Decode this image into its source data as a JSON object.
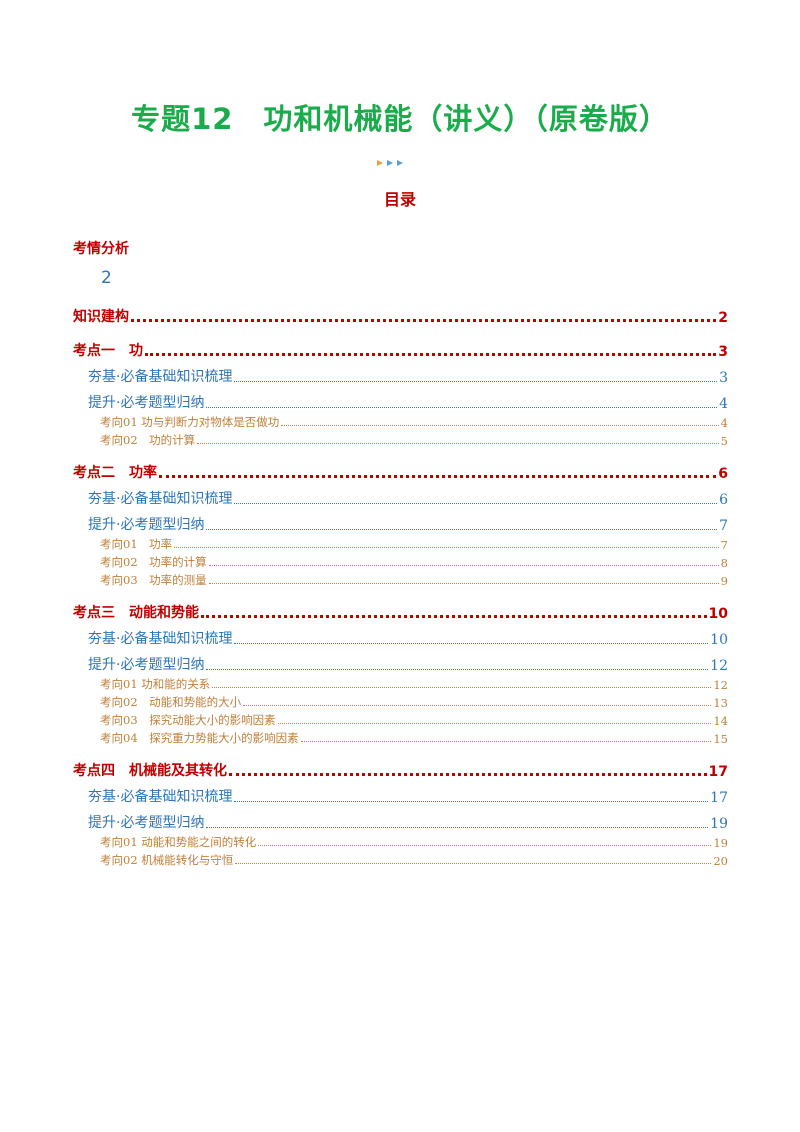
{
  "header": {
    "title": "专题12　功和机械能（讲义）（原卷版）"
  },
  "toc": {
    "title": "目录",
    "items": [
      {
        "text": "考情分析",
        "page": 2,
        "sections": []
      },
      {
        "text": "知识建构",
        "page": 2,
        "sections": []
      },
      {
        "text": "考点一　功",
        "page": 3,
        "sections": [
          {
            "text": "夯基·必备基础知识梳理",
            "page": 3,
            "topics": []
          },
          {
            "text": "提升·必考题型归纳",
            "page": 4,
            "topics": [
              {
                "text": "考向01 功与判断力对物体是否做功",
                "page": 4
              },
              {
                "text": "考向02　功的计算",
                "page": 5
              }
            ]
          }
        ]
      },
      {
        "text": "考点二　功率",
        "page": 6,
        "sections": [
          {
            "text": "夯基·必备基础知识梳理",
            "page": 6,
            "topics": []
          },
          {
            "text": "提升·必考题型归纳",
            "page": 7,
            "topics": [
              {
                "text": "考向01　功率",
                "page": 7
              },
              {
                "text": "考向02　功率的计算",
                "page": 8
              },
              {
                "text": "考向03　功率的测量",
                "page": 9
              }
            ]
          }
        ]
      },
      {
        "text": "考点三　动能和势能",
        "page": 10,
        "sections": [
          {
            "text": "夯基·必备基础知识梳理",
            "page": 10,
            "topics": []
          },
          {
            "text": "提升·必考题型归纳",
            "page": 12,
            "topics": [
              {
                "text": "考向01 功和能的关系",
                "page": 12
              },
              {
                "text": "考向02　动能和势能的大小",
                "page": 13
              },
              {
                "text": "考向03　探究动能大小的影响因素",
                "page": 14
              },
              {
                "text": "考向04　探究重力势能大小的影响因素",
                "page": 15
              }
            ]
          }
        ]
      },
      {
        "text": "考点四　机械能及其转化",
        "page": 17,
        "sections": [
          {
            "text": "夯基·必备基础知识梳理",
            "page": 17,
            "topics": []
          },
          {
            "text": "提升·必考题型归纳",
            "page": 19,
            "topics": [
              {
                "text": "考向01 动能和势能之间的转化",
                "page": 19
              },
              {
                "text": "考向02 机械能转化与守恒",
                "page": 20
              }
            ]
          }
        ]
      }
    ]
  }
}
